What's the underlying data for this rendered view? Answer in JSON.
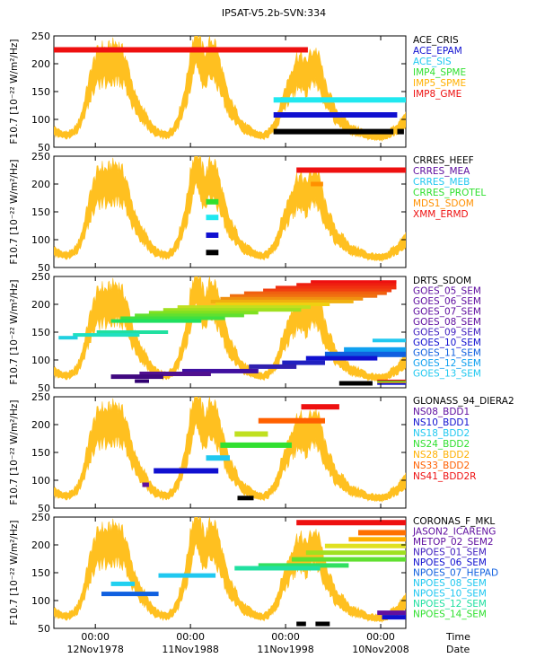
{
  "title": "IPSAT-V5.2b-SVN:334",
  "ylabel": "F10.7 [10⁻²² W/m²/Hz]",
  "x_ticks": [
    {
      "time": "00:00",
      "date": "12Nov1978",
      "year": 1978.86
    },
    {
      "time": "00:00",
      "date": "11Nov1988",
      "year": 1988.86
    },
    {
      "time": "00:00",
      "date": "11Nov1998",
      "year": 1998.86
    },
    {
      "time": "00:00",
      "date": "10Nov2008",
      "year": 2008.86
    }
  ],
  "x_axis_labels": {
    "time": "Time",
    "date": "Date"
  },
  "y_ticks": [
    50,
    100,
    150,
    200,
    250
  ],
  "f107_color": "#ffc020",
  "chart_data": {
    "type": "line",
    "xlim": [
      1974.5,
      2011.5
    ],
    "ylim": [
      50,
      250
    ],
    "f107": [
      [
        1974.5,
        80
      ],
      [
        1975.0,
        75
      ],
      [
        1975.5,
        72
      ],
      [
        1976.0,
        72
      ],
      [
        1976.5,
        75
      ],
      [
        1977.0,
        85
      ],
      [
        1977.5,
        105
      ],
      [
        1978.0,
        140
      ],
      [
        1978.5,
        170
      ],
      [
        1979.0,
        190
      ],
      [
        1979.5,
        200
      ],
      [
        1980.0,
        195
      ],
      [
        1980.5,
        200
      ],
      [
        1981.0,
        205
      ],
      [
        1981.5,
        200
      ],
      [
        1982.0,
        185
      ],
      [
        1982.5,
        160
      ],
      [
        1983.0,
        130
      ],
      [
        1983.5,
        115
      ],
      [
        1984.0,
        105
      ],
      [
        1984.5,
        90
      ],
      [
        1985.0,
        80
      ],
      [
        1985.5,
        75
      ],
      [
        1986.0,
        72
      ],
      [
        1986.5,
        73
      ],
      [
        1987.0,
        80
      ],
      [
        1987.5,
        95
      ],
      [
        1988.0,
        120
      ],
      [
        1988.5,
        155
      ],
      [
        1989.0,
        205
      ],
      [
        1989.5,
        225
      ],
      [
        1990.0,
        200
      ],
      [
        1990.5,
        190
      ],
      [
        1991.0,
        210
      ],
      [
        1991.5,
        205
      ],
      [
        1992.0,
        175
      ],
      [
        1992.5,
        145
      ],
      [
        1993.0,
        120
      ],
      [
        1993.5,
        110
      ],
      [
        1994.0,
        95
      ],
      [
        1994.5,
        85
      ],
      [
        1995.0,
        80
      ],
      [
        1995.5,
        75
      ],
      [
        1996.0,
        72
      ],
      [
        1996.5,
        70
      ],
      [
        1997.0,
        74
      ],
      [
        1997.5,
        85
      ],
      [
        1998.0,
        100
      ],
      [
        1998.5,
        125
      ],
      [
        1999.0,
        145
      ],
      [
        1999.5,
        165
      ],
      [
        2000.0,
        185
      ],
      [
        2000.5,
        185
      ],
      [
        2001.0,
        175
      ],
      [
        2001.5,
        190
      ],
      [
        2002.0,
        195
      ],
      [
        2002.5,
        180
      ],
      [
        2003.0,
        145
      ],
      [
        2003.5,
        130
      ],
      [
        2004.0,
        110
      ],
      [
        2004.5,
        100
      ],
      [
        2005.0,
        95
      ],
      [
        2005.5,
        85
      ],
      [
        2006.0,
        80
      ],
      [
        2006.5,
        78
      ],
      [
        2007.0,
        75
      ],
      [
        2007.5,
        70
      ],
      [
        2008.0,
        70
      ],
      [
        2008.5,
        68
      ],
      [
        2009.0,
        68
      ],
      [
        2009.5,
        70
      ],
      [
        2010.0,
        78
      ],
      [
        2010.5,
        82
      ],
      [
        2011.0,
        90
      ],
      [
        2011.5,
        100
      ]
    ],
    "panels": [
      {
        "legend": [
          {
            "name": "ACE_CRIS",
            "color": "#000000"
          },
          {
            "name": "ACE_EPAM",
            "color": "#1010d0"
          },
          {
            "name": "ACE_SIS",
            "color": "#20c8f0"
          },
          {
            "name": "IMP4_SPME",
            "color": "#30e030"
          },
          {
            "name": "IMP5_SPME",
            "color": "#ffb000"
          },
          {
            "name": "IMP8_GME",
            "color": "#ee1010"
          }
        ],
        "bars": [
          {
            "color": "#ee1010",
            "x0": 1974.5,
            "x1": 2001.2,
            "y": 225,
            "h": 6
          },
          {
            "color": "#20e8f0",
            "x0": 1997.6,
            "x1": 2011.5,
            "y": 135,
            "h": 6
          },
          {
            "color": "#1010d0",
            "x0": 1997.6,
            "x1": 2010.6,
            "y": 108,
            "h": 6
          },
          {
            "color": "#000000",
            "x0": 1997.6,
            "x1": 2010.2,
            "y": 78,
            "h": 6
          },
          {
            "color": "#000000",
            "x0": 2010.6,
            "x1": 2011.3,
            "y": 78,
            "h": 6
          }
        ]
      },
      {
        "legend": [
          {
            "name": "CRRES_HEEF",
            "color": "#000000"
          },
          {
            "name": "CRRES_MEA",
            "color": "#6010a0"
          },
          {
            "name": "CRRES_MEB",
            "color": "#20c8f0"
          },
          {
            "name": "CRRES_PROTEL",
            "color": "#30e030"
          },
          {
            "name": "MDS1_SDOM",
            "color": "#ff9000"
          },
          {
            "name": "XMM_ERMD",
            "color": "#ee1010"
          }
        ],
        "bars": [
          {
            "color": "#ee1010",
            "x0": 2000.0,
            "x1": 2011.5,
            "y": 225,
            "h": 6
          },
          {
            "color": "#ff9000",
            "x0": 2001.5,
            "x1": 2002.8,
            "y": 200,
            "h": 5
          },
          {
            "color": "#30e030",
            "x0": 1990.5,
            "x1": 1991.8,
            "y": 168,
            "h": 6
          },
          {
            "color": "#20e8f0",
            "x0": 1990.5,
            "x1": 1991.8,
            "y": 140,
            "h": 6
          },
          {
            "color": "#1010d0",
            "x0": 1990.5,
            "x1": 1991.8,
            "y": 108,
            "h": 6
          },
          {
            "color": "#000000",
            "x0": 1990.5,
            "x1": 1991.8,
            "y": 77,
            "h": 6
          }
        ]
      },
      {
        "legend": [
          {
            "name": "DRTS_SDOM",
            "color": "#000000"
          },
          {
            "name": "GOES_05_SEM",
            "color": "#6010a0"
          },
          {
            "name": "GOES_06_SEM",
            "color": "#6010a0"
          },
          {
            "name": "GOES_07_SEM",
            "color": "#6010a0"
          },
          {
            "name": "GOES_08_SEM",
            "color": "#6010a0"
          },
          {
            "name": "GOES_09_SEM",
            "color": "#4020c0"
          },
          {
            "name": "GOES_10_SEM",
            "color": "#1010d0"
          },
          {
            "name": "GOES_11_SEM",
            "color": "#1060e0"
          },
          {
            "name": "GOES_12_SEM",
            "color": "#10a0f0"
          },
          {
            "name": "GOES_13_SEM",
            "color": "#20c8f0"
          }
        ],
        "bars": [
          {
            "color": "#ee1010",
            "x0": 2001.5,
            "x1": 2010.5,
            "y": 240,
            "h": 4
          },
          {
            "color": "#ee2010",
            "x0": 2000.0,
            "x1": 2010.5,
            "y": 235,
            "h": 4
          },
          {
            "color": "#f03010",
            "x0": 1997.8,
            "x1": 2010.5,
            "y": 230,
            "h": 4
          },
          {
            "color": "#f04010",
            "x0": 1996.5,
            "x1": 2010.0,
            "y": 225,
            "h": 4
          },
          {
            "color": "#f06010",
            "x0": 1994.5,
            "x1": 2009.5,
            "y": 220,
            "h": 4
          },
          {
            "color": "#f07010",
            "x0": 1993.0,
            "x1": 2008.5,
            "y": 215,
            "h": 4
          },
          {
            "color": "#f09010",
            "x0": 1992.0,
            "x1": 2007.0,
            "y": 210,
            "h": 4
          },
          {
            "color": "#f0b010",
            "x0": 1991.0,
            "x1": 2006.0,
            "y": 205,
            "h": 4
          },
          {
            "color": "#f0d010",
            "x0": 1991.5,
            "x1": 2003.5,
            "y": 200,
            "h": 4
          },
          {
            "color": "#c0e020",
            "x0": 1987.5,
            "x1": 2001.5,
            "y": 195,
            "h": 4
          },
          {
            "color": "#a0e020",
            "x0": 1986.0,
            "x1": 2000.5,
            "y": 190,
            "h": 4
          },
          {
            "color": "#80e020",
            "x0": 1984.5,
            "x1": 1996.0,
            "y": 185,
            "h": 4
          },
          {
            "color": "#60e030",
            "x0": 1983.0,
            "x1": 1994.5,
            "y": 180,
            "h": 4
          },
          {
            "color": "#40e040",
            "x0": 1981.5,
            "x1": 1992.5,
            "y": 175,
            "h": 4
          },
          {
            "color": "#20e060",
            "x0": 1980.5,
            "x1": 1990.0,
            "y": 170,
            "h": 4
          },
          {
            "color": "#20e0a0",
            "x0": 1979.0,
            "x1": 1986.5,
            "y": 150,
            "h": 4
          },
          {
            "color": "#20e0c0",
            "x0": 1976.5,
            "x1": 1983.5,
            "y": 145,
            "h": 4
          },
          {
            "color": "#20d0e0",
            "x0": 1975.0,
            "x1": 1977.0,
            "y": 140,
            "h": 4
          },
          {
            "color": "#20c8f0",
            "x0": 2008.0,
            "x1": 2011.5,
            "y": 135,
            "h": 4
          },
          {
            "color": "#10a0f0",
            "x0": 2005.0,
            "x1": 2011.5,
            "y": 118,
            "h": 6
          },
          {
            "color": "#1060e0",
            "x0": 2003.0,
            "x1": 2011.5,
            "y": 110,
            "h": 6
          },
          {
            "color": "#1010d0",
            "x0": 2001.0,
            "x1": 2008.5,
            "y": 103,
            "h": 5
          },
          {
            "color": "#2020c0",
            "x0": 1998.5,
            "x1": 2003.0,
            "y": 95,
            "h": 5
          },
          {
            "color": "#3020b0",
            "x0": 1995.0,
            "x1": 2000.0,
            "y": 88,
            "h": 5
          },
          {
            "color": "#4010a0",
            "x0": 1988.0,
            "x1": 1996.0,
            "y": 80,
            "h": 5
          },
          {
            "color": "#501090",
            "x0": 1983.5,
            "x1": 1991.0,
            "y": 75,
            "h": 5
          },
          {
            "color": "#400880",
            "x0": 1980.5,
            "x1": 1986.0,
            "y": 70,
            "h": 5
          },
          {
            "color": "#300070",
            "x0": 1983.0,
            "x1": 1984.5,
            "y": 62,
            "h": 4
          },
          {
            "color": "#000000",
            "x0": 2004.5,
            "x1": 2008.0,
            "y": 58,
            "h": 5
          },
          {
            "color": "#ee1010",
            "x0": 2008.5,
            "x1": 2011.5,
            "y": 63,
            "h": 2
          },
          {
            "color": "#30e030",
            "x0": 2008.5,
            "x1": 2011.5,
            "y": 61,
            "h": 2
          },
          {
            "color": "#ffb000",
            "x0": 2008.5,
            "x1": 2011.5,
            "y": 59,
            "h": 2
          },
          {
            "color": "#1010d0",
            "x0": 2008.5,
            "x1": 2011.5,
            "y": 57,
            "h": 2
          }
        ]
      },
      {
        "legend": [
          {
            "name": "GLONASS_94_DIERA2",
            "color": "#000000"
          },
          {
            "name": "NS08_BDD1",
            "color": "#6010a0"
          },
          {
            "name": "NS10_BDD1",
            "color": "#1010d0"
          },
          {
            "name": "NS18_BDD2",
            "color": "#20c8f0"
          },
          {
            "name": "NS24_BDD2",
            "color": "#30e030"
          },
          {
            "name": "NS28_BDD2",
            "color": "#ffb000"
          },
          {
            "name": "NS33_BDD2",
            "color": "#ff6000"
          },
          {
            "name": "NS41_BDD2R",
            "color": "#ee1010"
          }
        ],
        "bars": [
          {
            "color": "#ee1010",
            "x0": 2000.5,
            "x1": 2004.5,
            "y": 232,
            "h": 6
          },
          {
            "color": "#ff6000",
            "x0": 1996.0,
            "x1": 2003.0,
            "y": 207,
            "h": 6
          },
          {
            "color": "#c0e020",
            "x0": 1993.5,
            "x1": 1997.0,
            "y": 183,
            "h": 6
          },
          {
            "color": "#30e030",
            "x0": 1992.0,
            "x1": 1999.5,
            "y": 163,
            "h": 6
          },
          {
            "color": "#20c8f0",
            "x0": 1990.5,
            "x1": 1993.0,
            "y": 140,
            "h": 6
          },
          {
            "color": "#1010d0",
            "x0": 1985.0,
            "x1": 1991.8,
            "y": 117,
            "h": 6
          },
          {
            "color": "#6010a0",
            "x0": 1983.8,
            "x1": 1984.5,
            "y": 92,
            "h": 5
          },
          {
            "color": "#000000",
            "x0": 1993.8,
            "x1": 1995.5,
            "y": 68,
            "h": 5
          }
        ]
      },
      {
        "legend": [
          {
            "name": "CORONAS_F_MKL",
            "color": "#000000"
          },
          {
            "name": "JASON2_ICARENG",
            "color": "#6010a0"
          },
          {
            "name": "METOP_02_SEM2",
            "color": "#6010a0"
          },
          {
            "name": "NPOES_01_SEM",
            "color": "#4020c0"
          },
          {
            "name": "NPOES_06_SEM",
            "color": "#1010d0"
          },
          {
            "name": "NPOES_07_HEPAD",
            "color": "#1060e0"
          },
          {
            "name": "NPOES_08_SEM",
            "color": "#20c8f0"
          },
          {
            "name": "NPOES_10_SEM",
            "color": "#20c8f0"
          },
          {
            "name": "NPOES_12_SEM",
            "color": "#20e0a0"
          },
          {
            "name": "NPOES_14_SEM",
            "color": "#30e030"
          }
        ],
        "bars": [
          {
            "color": "#ee1010",
            "x0": 2000.0,
            "x1": 2011.5,
            "y": 240,
            "h": 6
          },
          {
            "color": "#ff7000",
            "x0": 2006.5,
            "x1": 2011.5,
            "y": 222,
            "h": 6
          },
          {
            "color": "#ffb000",
            "x0": 2005.5,
            "x1": 2011.5,
            "y": 210,
            "h": 5
          },
          {
            "color": "#e0e020",
            "x0": 2003.0,
            "x1": 2011.5,
            "y": 198,
            "h": 5
          },
          {
            "color": "#a0e020",
            "x0": 2001.0,
            "x1": 2011.5,
            "y": 186,
            "h": 5
          },
          {
            "color": "#60e030",
            "x0": 1999.5,
            "x1": 2011.5,
            "y": 174,
            "h": 5
          },
          {
            "color": "#30e060",
            "x0": 1996.0,
            "x1": 2005.5,
            "y": 163,
            "h": 5
          },
          {
            "color": "#20e0a0",
            "x0": 1993.5,
            "x1": 2002.5,
            "y": 158,
            "h": 5
          },
          {
            "color": "#20c8f0",
            "x0": 1985.5,
            "x1": 1991.5,
            "y": 145,
            "h": 5
          },
          {
            "color": "#20d0f0",
            "x0": 1980.5,
            "x1": 1983.0,
            "y": 130,
            "h": 5
          },
          {
            "color": "#1060e0",
            "x0": 1979.5,
            "x1": 1985.5,
            "y": 112,
            "h": 5
          },
          {
            "color": "#000000",
            "x0": 2000.0,
            "x1": 2001.0,
            "y": 58,
            "h": 5
          },
          {
            "color": "#000000",
            "x0": 2002.0,
            "x1": 2003.5,
            "y": 58,
            "h": 5
          },
          {
            "color": "#6010a0",
            "x0": 2008.5,
            "x1": 2011.5,
            "y": 78,
            "h": 5
          },
          {
            "color": "#1010d0",
            "x0": 2009.0,
            "x1": 2011.5,
            "y": 70,
            "h": 5
          }
        ]
      }
    ]
  }
}
